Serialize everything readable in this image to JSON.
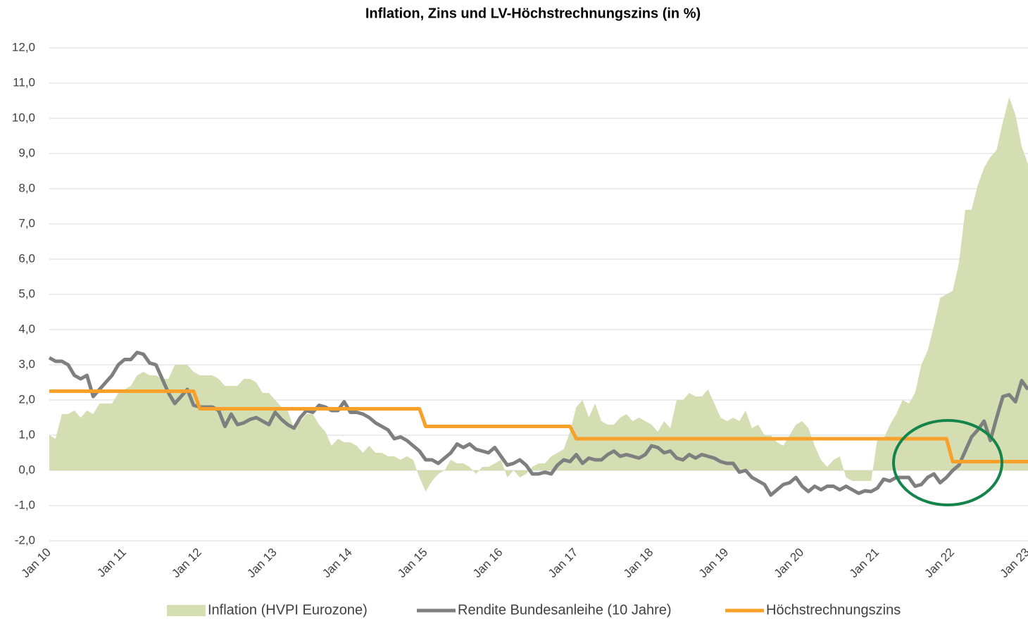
{
  "chart_data": {
    "type": "line",
    "title": "Inflation, Zins und LV-Höchstrechnungszins (in %)",
    "categories": [
      "Jan 10",
      null,
      null,
      null,
      null,
      null,
      null,
      null,
      null,
      null,
      null,
      null,
      "Jan 11",
      null,
      null,
      null,
      null,
      null,
      null,
      null,
      null,
      null,
      null,
      null,
      "Jan 12",
      null,
      null,
      null,
      null,
      null,
      null,
      null,
      null,
      null,
      null,
      null,
      "Jan 13",
      null,
      null,
      null,
      null,
      null,
      null,
      null,
      null,
      null,
      null,
      null,
      "Jan 14",
      null,
      null,
      null,
      null,
      null,
      null,
      null,
      null,
      null,
      null,
      null,
      "Jan 15",
      null,
      null,
      null,
      null,
      null,
      null,
      null,
      null,
      null,
      null,
      null,
      "Jan 16",
      null,
      null,
      null,
      null,
      null,
      null,
      null,
      null,
      null,
      null,
      null,
      "Jan 17",
      null,
      null,
      null,
      null,
      null,
      null,
      null,
      null,
      null,
      null,
      null,
      "Jan 18",
      null,
      null,
      null,
      null,
      null,
      null,
      null,
      null,
      null,
      null,
      null,
      "Jan 19",
      null,
      null,
      null,
      null,
      null,
      null,
      null,
      null,
      null,
      null,
      null,
      "Jan 20",
      null,
      null,
      null,
      null,
      null,
      null,
      null,
      null,
      null,
      null,
      null,
      "Jan 21",
      null,
      null,
      null,
      null,
      null,
      null,
      null,
      null,
      null,
      null,
      null,
      "Jan 22",
      null,
      null,
      null,
      null,
      null,
      null,
      null,
      null,
      null,
      null,
      null,
      "Jan 23"
    ],
    "series": [
      {
        "name": "Inflation (HVPI Eurozone)",
        "type": "area",
        "color": "#d5deb3",
        "values": [
          1.0,
          0.9,
          1.6,
          1.6,
          1.7,
          1.5,
          1.7,
          1.6,
          1.9,
          1.9,
          1.9,
          2.2,
          2.3,
          2.4,
          2.7,
          2.8,
          2.7,
          2.7,
          2.6,
          2.6,
          3.0,
          3.0,
          3.0,
          2.8,
          2.7,
          2.7,
          2.7,
          2.6,
          2.4,
          2.4,
          2.4,
          2.6,
          2.6,
          2.5,
          2.2,
          2.2,
          2.0,
          1.8,
          1.7,
          1.2,
          1.4,
          1.6,
          1.6,
          1.3,
          1.1,
          0.7,
          0.9,
          0.8,
          0.8,
          0.7,
          0.5,
          0.7,
          0.5,
          0.5,
          0.4,
          0.4,
          0.3,
          0.4,
          0.3,
          -0.2,
          -0.6,
          -0.3,
          -0.1,
          0.0,
          0.3,
          0.2,
          0.2,
          0.1,
          -0.1,
          0.1,
          0.1,
          0.2,
          0.3,
          -0.2,
          0.0,
          -0.2,
          -0.1,
          0.1,
          0.2,
          0.2,
          0.4,
          0.5,
          0.6,
          1.1,
          1.8,
          2.0,
          1.5,
          1.9,
          1.4,
          1.3,
          1.3,
          1.5,
          1.6,
          1.4,
          1.5,
          1.4,
          1.3,
          1.1,
          1.4,
          1.2,
          2.0,
          2.0,
          2.2,
          2.1,
          2.1,
          2.3,
          1.9,
          1.5,
          1.4,
          1.5,
          1.4,
          1.7,
          1.2,
          1.3,
          1.0,
          1.0,
          0.8,
          0.7,
          1.0,
          1.3,
          1.4,
          1.2,
          0.7,
          0.3,
          0.1,
          0.3,
          0.4,
          -0.2,
          -0.3,
          -0.3,
          -0.3,
          -0.3,
          0.9,
          0.9,
          1.3,
          1.6,
          2.0,
          1.9,
          2.2,
          3.0,
          3.4,
          4.1,
          4.9,
          5.0,
          5.1,
          5.9,
          7.4,
          7.4,
          8.1,
          8.6,
          8.9,
          9.1,
          9.9,
          10.6,
          10.1,
          9.2,
          8.7
        ]
      },
      {
        "name": "Rendite Bundesanleihe (10 Jahre)",
        "type": "line",
        "color": "#7f7f7f",
        "values": [
          3.2,
          3.1,
          3.1,
          3.0,
          2.7,
          2.6,
          2.7,
          2.1,
          2.3,
          2.5,
          2.7,
          3.0,
          3.15,
          3.15,
          3.35,
          3.3,
          3.05,
          3.0,
          2.6,
          2.2,
          1.9,
          2.1,
          2.3,
          1.85,
          1.8,
          1.8,
          1.8,
          1.7,
          1.25,
          1.6,
          1.3,
          1.35,
          1.45,
          1.5,
          1.4,
          1.3,
          1.65,
          1.45,
          1.3,
          1.2,
          1.5,
          1.7,
          1.65,
          1.85,
          1.8,
          1.7,
          1.7,
          1.95,
          1.65,
          1.65,
          1.6,
          1.5,
          1.35,
          1.25,
          1.15,
          0.9,
          0.95,
          0.85,
          0.7,
          0.55,
          0.3,
          0.3,
          0.2,
          0.35,
          0.5,
          0.75,
          0.65,
          0.75,
          0.6,
          0.55,
          0.5,
          0.65,
          0.4,
          0.15,
          0.2,
          0.3,
          0.15,
          -0.1,
          -0.1,
          -0.05,
          -0.1,
          0.15,
          0.3,
          0.25,
          0.45,
          0.2,
          0.35,
          0.3,
          0.3,
          0.45,
          0.55,
          0.4,
          0.45,
          0.4,
          0.35,
          0.45,
          0.7,
          0.65,
          0.5,
          0.55,
          0.35,
          0.3,
          0.45,
          0.35,
          0.45,
          0.4,
          0.35,
          0.25,
          0.2,
          0.2,
          -0.05,
          0.0,
          -0.2,
          -0.3,
          -0.4,
          -0.7,
          -0.55,
          -0.4,
          -0.35,
          -0.2,
          -0.45,
          -0.6,
          -0.45,
          -0.55,
          -0.45,
          -0.45,
          -0.55,
          -0.45,
          -0.55,
          -0.65,
          -0.58,
          -0.6,
          -0.5,
          -0.25,
          -0.3,
          -0.2,
          -0.2,
          -0.2,
          -0.45,
          -0.4,
          -0.2,
          -0.1,
          -0.35,
          -0.2,
          0.0,
          0.15,
          0.55,
          0.95,
          1.15,
          1.4,
          0.85,
          1.5,
          2.1,
          2.15,
          1.95,
          2.55,
          2.3
        ]
      },
      {
        "name": "Höchstrechnungszins",
        "type": "line",
        "color": "#f7a02a",
        "values": [
          2.25,
          2.25,
          2.25,
          2.25,
          2.25,
          2.25,
          2.25,
          2.25,
          2.25,
          2.25,
          2.25,
          2.25,
          2.25,
          2.25,
          2.25,
          2.25,
          2.25,
          2.25,
          2.25,
          2.25,
          2.25,
          2.25,
          2.25,
          2.25,
          1.75,
          1.75,
          1.75,
          1.75,
          1.75,
          1.75,
          1.75,
          1.75,
          1.75,
          1.75,
          1.75,
          1.75,
          1.75,
          1.75,
          1.75,
          1.75,
          1.75,
          1.75,
          1.75,
          1.75,
          1.75,
          1.75,
          1.75,
          1.75,
          1.75,
          1.75,
          1.75,
          1.75,
          1.75,
          1.75,
          1.75,
          1.75,
          1.75,
          1.75,
          1.75,
          1.75,
          1.25,
          1.25,
          1.25,
          1.25,
          1.25,
          1.25,
          1.25,
          1.25,
          1.25,
          1.25,
          1.25,
          1.25,
          1.25,
          1.25,
          1.25,
          1.25,
          1.25,
          1.25,
          1.25,
          1.25,
          1.25,
          1.25,
          1.25,
          1.25,
          0.9,
          0.9,
          0.9,
          0.9,
          0.9,
          0.9,
          0.9,
          0.9,
          0.9,
          0.9,
          0.9,
          0.9,
          0.9,
          0.9,
          0.9,
          0.9,
          0.9,
          0.9,
          0.9,
          0.9,
          0.9,
          0.9,
          0.9,
          0.9,
          0.9,
          0.9,
          0.9,
          0.9,
          0.9,
          0.9,
          0.9,
          0.9,
          0.9,
          0.9,
          0.9,
          0.9,
          0.9,
          0.9,
          0.9,
          0.9,
          0.9,
          0.9,
          0.9,
          0.9,
          0.9,
          0.9,
          0.9,
          0.9,
          0.9,
          0.9,
          0.9,
          0.9,
          0.9,
          0.9,
          0.9,
          0.9,
          0.9,
          0.9,
          0.9,
          0.9,
          0.25,
          0.25,
          0.25,
          0.25,
          0.25,
          0.25,
          0.25,
          0.25,
          0.25,
          0.25,
          0.25,
          0.25,
          0.25
        ]
      }
    ],
    "ylim": [
      -2,
      12
    ],
    "yticks": [
      {
        "value": -2,
        "label": "-2,0"
      },
      {
        "value": -1,
        "label": "-1,0"
      },
      {
        "value": 0,
        "label": "0,0"
      },
      {
        "value": 1,
        "label": "1,0"
      },
      {
        "value": 2,
        "label": "2,0"
      },
      {
        "value": 3,
        "label": "3,0"
      },
      {
        "value": 4,
        "label": "4,0"
      },
      {
        "value": 5,
        "label": "5,0"
      },
      {
        "value": 6,
        "label": "6,0"
      },
      {
        "value": 7,
        "label": "7,0"
      },
      {
        "value": 8,
        "label": "8,0"
      },
      {
        "value": 9,
        "label": "9,0"
      },
      {
        "value": 10,
        "label": "10,0"
      },
      {
        "value": 11,
        "label": "11,0"
      },
      {
        "value": 12,
        "label": "12,0"
      }
    ],
    "grid": true,
    "legend": "bottom"
  }
}
